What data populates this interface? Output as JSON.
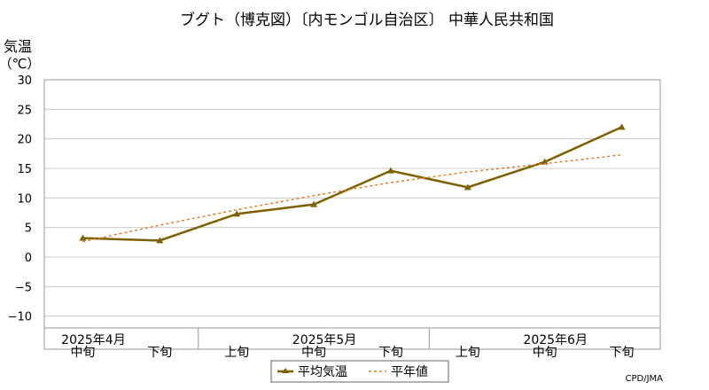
{
  "chart_data": {
    "type": "line",
    "title": "ブグト（博克図）〔内モンゴル自治区〕 中華人民共和国",
    "ylabel_line1": "気温",
    "ylabel_line2": "（℃）",
    "ylim": [
      -12,
      30
    ],
    "yticks": [
      30,
      25,
      20,
      15,
      10,
      5,
      0,
      -5,
      -10
    ],
    "grid": true,
    "legend_position": "bottom",
    "categories": [
      {
        "label": "中旬",
        "month": "2025年4月"
      },
      {
        "label": "下旬",
        "month": ""
      },
      {
        "label": "上旬",
        "month": ""
      },
      {
        "label": "中旬",
        "month": "2025年5月"
      },
      {
        "label": "下旬",
        "month": ""
      },
      {
        "label": "上旬",
        "month": ""
      },
      {
        "label": "中旬",
        "month": "2025年6月"
      },
      {
        "label": "下旬",
        "month": ""
      }
    ],
    "series": [
      {
        "name": "平均気温",
        "values": [
          3.2,
          2.8,
          7.3,
          8.9,
          14.6,
          11.8,
          16.1,
          22.0
        ],
        "color": "#7f6000",
        "style": "solid-marker"
      },
      {
        "name": "平年値",
        "values": [
          2.6,
          5.4,
          8.0,
          10.4,
          12.6,
          14.4,
          15.8,
          17.3
        ],
        "color": "#e07a1f",
        "style": "dotted"
      }
    ],
    "credit": "CPD/JMA"
  }
}
